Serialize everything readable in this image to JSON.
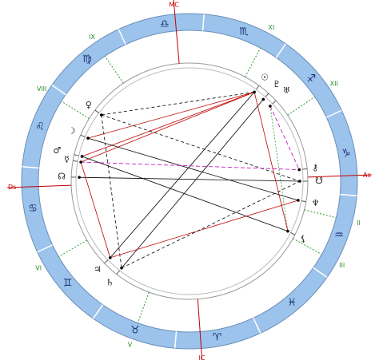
{
  "house_labels": [
    "MC",
    "XI",
    "XII",
    "As",
    "II",
    "III",
    "IC",
    "V",
    "VI",
    "Ds",
    "VIII",
    "IX"
  ],
  "signs": [
    "♎",
    "♏",
    "♐",
    "♑",
    "♒",
    "♓",
    "♈",
    "♉",
    "♊",
    "♋",
    "♌",
    "♍"
  ],
  "planets": [
    "☉",
    "♇",
    "♅",
    "♀",
    "☽",
    "♂",
    "☿",
    "☊",
    "⚷",
    "☋",
    "♆",
    "⚸",
    "♃",
    "♄"
  ]
}
